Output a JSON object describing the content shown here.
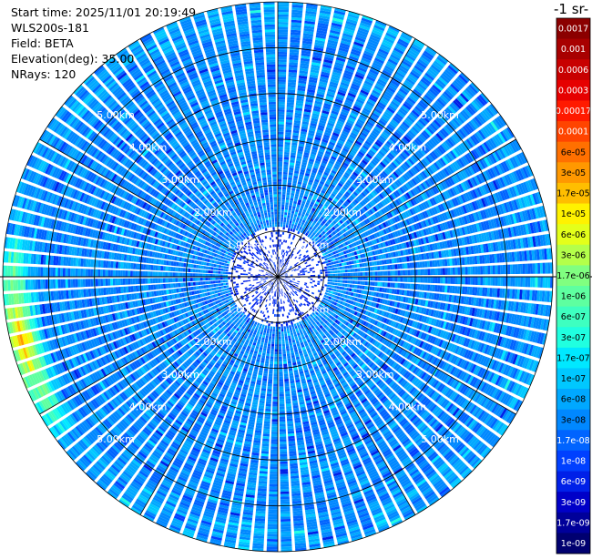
{
  "header": {
    "start_time": "Start time: 2025/11/01 20:19:49",
    "instrument": "WLS200s-181",
    "field": "Field: BETA",
    "elevation": "Elevation(deg): 35.00",
    "nrays": "NRays: 120"
  },
  "chart_data": {
    "type": "heatmap",
    "projection": "polar PPI",
    "field": "BETA",
    "elevation_deg": 35.0,
    "n_rays": 120,
    "max_range_km": 6.0,
    "range_ring_labels": [
      "1.00km",
      "2.00km",
      "3.00km",
      "4.00km",
      "5.00km"
    ],
    "colorbar_title": "-1 sr-",
    "colorbar_ticks": [
      "0.0017",
      "0.001",
      "0.0006",
      "0.0003",
      "0.00017",
      "0.0001",
      "6e-05",
      "3e-05",
      "1.7e-05",
      "1e-05",
      "6e-06",
      "3e-06",
      "1.7e-06",
      "1e-06",
      "6e-07",
      "3e-07",
      "1.7e-07",
      "1e-07",
      "6e-08",
      "3e-08",
      "1.7e-08",
      "1e-08",
      "6e-09",
      "3e-09",
      "1.7e-09",
      "1e-09"
    ],
    "colorbar_colors": [
      "#8b0000",
      "#a80000",
      "#c80000",
      "#e60000",
      "#ff1a00",
      "#ff4400",
      "#ff7000",
      "#ff9800",
      "#ffbe00",
      "#fff200",
      "#e4ff1a",
      "#b4ff4a",
      "#80ff80",
      "#5effa0",
      "#3effc0",
      "#20ffe0",
      "#00e8ff",
      "#00c8ff",
      "#00a8ff",
      "#0088ff",
      "#0064ff",
      "#0040ff",
      "#0020e8",
      "#0000c8",
      "#00009a",
      "#000070"
    ],
    "dominant_level": "3e-08",
    "high_band": {
      "azimuth_from_deg": 235,
      "azimuth_to_deg": 278,
      "range_km": 5.75,
      "peak_level": "6e-05"
    }
  }
}
